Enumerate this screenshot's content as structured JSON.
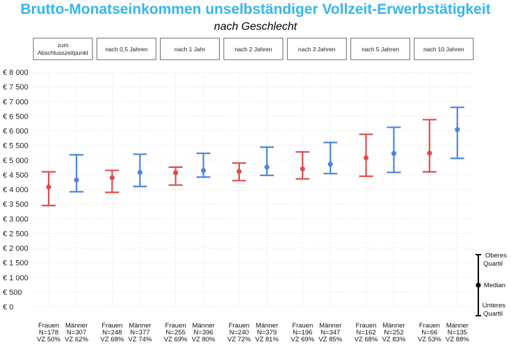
{
  "title": "Brutto-Monatseinkommen unselbständiger Vollzeit-Erwerbstätigkeit",
  "subtitle": "nach Geschlecht",
  "colors": {
    "frauen": "#e04c4c",
    "maenner": "#4a86dd",
    "title": "#35b6ee"
  },
  "chart_data": {
    "type": "errorbar",
    "facets": [
      "zum Abschlusszeitpunkt",
      "nach 0,5 Jahren",
      "nach 1 Jahr",
      "nach 2 Jahren",
      "nach 3 Jahren",
      "nach 5 Jahren",
      "nach 10 Jahren"
    ],
    "y_ticks": [
      "€ 0",
      "€ 500",
      "€ 1 000",
      "€ 1 500",
      "€ 2 000",
      "€ 2 500",
      "€ 3 000",
      "€ 3 500",
      "€ 4 000",
      "€ 4 500",
      "€ 5 000",
      "€ 5 500",
      "€ 6 000",
      "€ 6 500",
      "€ 7 000",
      "€ 7 500",
      "€ 8 000"
    ],
    "ylim": [
      0,
      8000
    ],
    "grid": true,
    "series": [
      {
        "name": "Frauen",
        "color": "#e04c4c",
        "points": [
          {
            "lower": 3450,
            "median": 4080,
            "upper": 4600,
            "n": "N=178",
            "vz": "VZ 50%"
          },
          {
            "lower": 3900,
            "median": 4400,
            "upper": 4650,
            "n": "N=248",
            "vz": "VZ 68%"
          },
          {
            "lower": 4150,
            "median": 4570,
            "upper": 4760,
            "n": "N=255",
            "vz": "VZ 69%"
          },
          {
            "lower": 4300,
            "median": 4610,
            "upper": 4900,
            "n": "N=240",
            "vz": "VZ 72%"
          },
          {
            "lower": 4360,
            "median": 4700,
            "upper": 5280,
            "n": "N=196",
            "vz": "VZ 69%"
          },
          {
            "lower": 4450,
            "median": 5080,
            "upper": 5880,
            "n": "N=162",
            "vz": "VZ 68%"
          },
          {
            "lower": 4600,
            "median": 5240,
            "upper": 6380,
            "n": "N=66",
            "vz": "VZ 53%"
          }
        ]
      },
      {
        "name": "Männer",
        "color": "#4a86dd",
        "points": [
          {
            "lower": 3920,
            "median": 4320,
            "upper": 5180,
            "n": "N=307",
            "vz": "VZ 62%"
          },
          {
            "lower": 4100,
            "median": 4580,
            "upper": 5200,
            "n": "N=377",
            "vz": "VZ 74%"
          },
          {
            "lower": 4420,
            "median": 4650,
            "upper": 5230,
            "n": "N=396",
            "vz": "VZ 80%"
          },
          {
            "lower": 4480,
            "median": 4760,
            "upper": 5440,
            "n": "N=379",
            "vz": "VZ 81%"
          },
          {
            "lower": 4540,
            "median": 4860,
            "upper": 5600,
            "n": "N=347",
            "vz": "VZ 85%"
          },
          {
            "lower": 4580,
            "median": 5230,
            "upper": 6120,
            "n": "N=252",
            "vz": "VZ 83%"
          },
          {
            "lower": 5060,
            "median": 6040,
            "upper": 6800,
            "n": "N=135",
            "vz": "VZ 88%"
          }
        ]
      }
    ],
    "legend": {
      "upper": [
        "Oberes",
        "Quartil"
      ],
      "median": "Median",
      "lower": [
        "Unteres",
        "Quartil"
      ]
    }
  }
}
